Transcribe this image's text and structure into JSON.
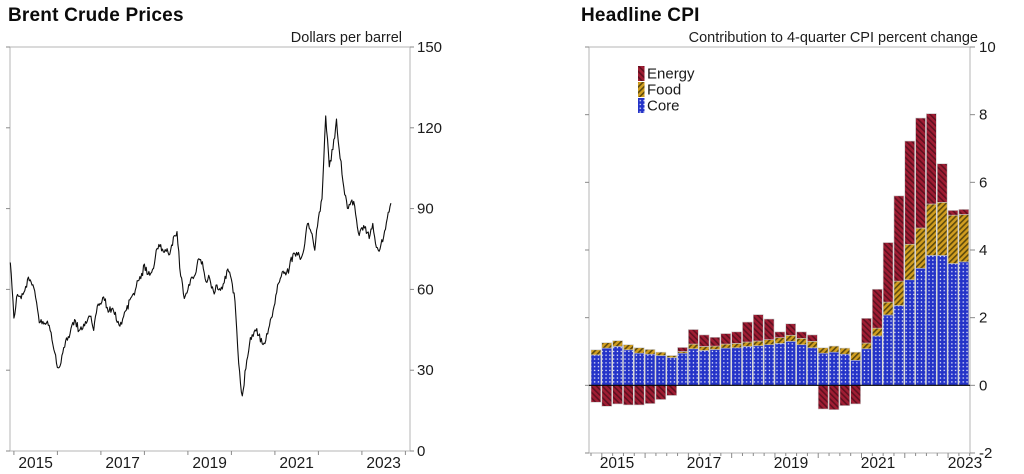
{
  "figure": {
    "background": "#ffffff",
    "frame_color": "#b5b5b5",
    "tick_color": "#8a8a8a",
    "text_color": "#1a1a1a",
    "zero_line_color": "#000000"
  },
  "chart_data": [
    {
      "type": "line",
      "title": "Brent Crude Prices",
      "unit_label": "Dollars per barrel",
      "ylim": [
        0,
        150
      ],
      "yticks": [
        0,
        30,
        60,
        90,
        120,
        150
      ],
      "x_tick_labels": [
        "2015",
        "2017",
        "2019",
        "2021",
        "2023"
      ],
      "x_label_years": [
        2015,
        2017,
        2019,
        2021,
        2023
      ],
      "minor_year_ticks": [
        2015,
        2016,
        2017,
        2018,
        2019,
        2020,
        2021,
        2022,
        2023,
        2024
      ],
      "grid": false,
      "series": [
        {
          "name": "Brent crude oil price",
          "color": "#0d0d0d",
          "frequency": "monthly",
          "start": "2014-12",
          "end": "2023-09",
          "values": [
            70,
            49,
            58,
            56,
            60,
            64,
            62,
            57,
            47,
            48,
            48,
            45,
            38,
            31,
            33,
            39,
            42,
            47,
            48,
            45,
            46,
            47,
            50,
            45,
            54,
            55,
            56,
            52,
            53,
            51,
            47,
            49,
            52,
            56,
            58,
            63,
            64,
            69,
            65,
            66,
            72,
            77,
            75,
            74,
            73,
            79,
            81,
            65,
            57,
            60,
            64,
            66,
            71,
            70,
            63,
            64,
            59,
            62,
            60,
            63,
            67,
            64,
            56,
            33,
            20,
            31,
            40,
            43,
            45,
            41,
            40,
            44,
            50,
            55,
            62,
            66,
            65,
            68,
            73,
            74,
            71,
            75,
            84,
            81,
            75,
            86,
            94,
            124,
            106,
            112,
            123,
            109,
            98,
            90,
            93,
            91,
            81,
            83,
            83,
            79,
            85,
            76,
            75,
            80,
            86,
            92
          ]
        }
      ]
    },
    {
      "type": "bar",
      "stacked": true,
      "title": "Headline CPI",
      "subtitle": "Contribution to 4-quarter CPI percent change",
      "ylim": [
        -2,
        10
      ],
      "yticks": [
        -2,
        0,
        2,
        4,
        6,
        8,
        10
      ],
      "x_tick_labels": [
        "2015",
        "2017",
        "2019",
        "2021",
        "2023"
      ],
      "x_label_years": [
        2015,
        2017,
        2019,
        2021,
        2023
      ],
      "legend_position": "top-left",
      "zero_line": true,
      "grid": false,
      "categories": [
        "2014Q4",
        "2015Q1",
        "2015Q2",
        "2015Q3",
        "2015Q4",
        "2016Q1",
        "2016Q2",
        "2016Q3",
        "2016Q4",
        "2017Q1",
        "2017Q2",
        "2017Q3",
        "2017Q4",
        "2018Q1",
        "2018Q2",
        "2018Q3",
        "2018Q4",
        "2019Q1",
        "2019Q2",
        "2019Q3",
        "2019Q4",
        "2020Q1",
        "2020Q2",
        "2020Q3",
        "2020Q4",
        "2021Q1",
        "2021Q2",
        "2021Q3",
        "2021Q4",
        "2022Q1",
        "2022Q2",
        "2022Q3",
        "2022Q4",
        "2023Q1",
        "2023Q2"
      ],
      "stack_bottom_to_top": [
        "Core",
        "Food",
        "Energy"
      ],
      "series": [
        {
          "name": "Energy",
          "color": "#A01D33",
          "hatch_color": "#5f1020",
          "hatch": "diagonal-forward",
          "values": [
            -0.5,
            -0.62,
            -0.55,
            -0.58,
            -0.58,
            -0.54,
            -0.42,
            -0.3,
            0.12,
            0.43,
            0.34,
            0.26,
            0.31,
            0.34,
            0.59,
            0.78,
            0.61,
            0.17,
            0.34,
            0.19,
            0.19,
            -0.7,
            -0.72,
            -0.6,
            -0.55,
            0.73,
            1.15,
            1.76,
            2.52,
            3.05,
            3.25,
            2.67,
            1.14,
            0.14,
            0.15
          ]
        },
        {
          "name": "Food",
          "color": "#D29E1F",
          "hatch_color": "#5d4a0e",
          "hatch": "diagonal-back",
          "values": [
            0.15,
            0.16,
            0.17,
            0.15,
            0.16,
            0.14,
            0.1,
            0.06,
            0.05,
            0.14,
            0.12,
            0.1,
            0.12,
            0.13,
            0.13,
            0.14,
            0.15,
            0.17,
            0.18,
            0.19,
            0.19,
            0.16,
            0.18,
            0.18,
            0.24,
            0.17,
            0.23,
            0.38,
            0.72,
            1.05,
            1.19,
            1.52,
            1.57,
            1.43,
            1.4
          ]
        },
        {
          "name": "Core",
          "color": "#2433C8",
          "hatch_color": "#ffffff",
          "hatch": "dots",
          "values": [
            0.9,
            1.1,
            1.15,
            1.05,
            0.95,
            0.92,
            0.88,
            0.82,
            0.95,
            1.08,
            1.03,
            1.06,
            1.1,
            1.11,
            1.15,
            1.17,
            1.2,
            1.24,
            1.3,
            1.2,
            1.11,
            0.95,
            0.98,
            0.92,
            0.74,
            1.08,
            1.46,
            2.08,
            2.36,
            3.12,
            3.46,
            3.84,
            3.84,
            3.6,
            3.65
          ]
        }
      ]
    }
  ]
}
